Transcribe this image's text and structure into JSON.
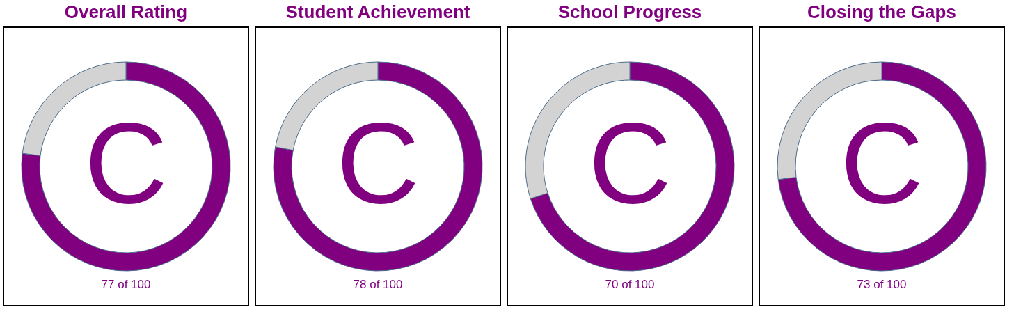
{
  "chart_data": [
    {
      "type": "donut",
      "title": "Overall Rating",
      "categories": [
        null,
        null
      ],
      "values": [
        77,
        23
      ],
      "colors": [
        "#800080",
        "#d3d3d3"
      ],
      "annotations": [
        "C",
        "77 of 100"
      ]
    },
    {
      "type": "donut",
      "title": "Student Achievement",
      "categories": [
        null,
        null
      ],
      "values": [
        78,
        22
      ],
      "colors": [
        "#800080",
        "#d3d3d3"
      ],
      "annotations": [
        "C",
        "78 of 100"
      ]
    },
    {
      "type": "donut",
      "title": "School Progress",
      "categories": [
        null,
        null
      ],
      "values": [
        70,
        30
      ],
      "colors": [
        "#800080",
        "#d3d3d3"
      ],
      "annotations": [
        "C",
        "70 of 100"
      ]
    },
    {
      "type": "donut",
      "title": "Closing the Gaps",
      "categories": [
        null,
        null
      ],
      "values": [
        73,
        27
      ],
      "colors": [
        "#800080",
        "#d3d3d3"
      ],
      "annotations": [
        "C",
        "73 of 100"
      ]
    }
  ]
}
